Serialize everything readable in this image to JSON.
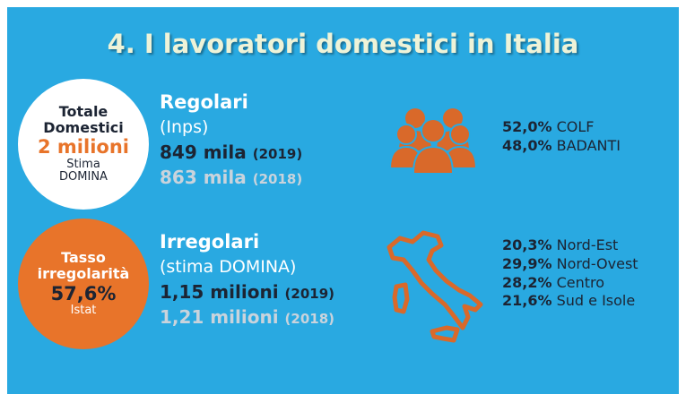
{
  "header": {
    "title": "4. I lavoratori domestici in Italia"
  },
  "total_circle": {
    "line1": "Totale",
    "line2": "Domestici",
    "value": "2 milioni",
    "source1": "Stima",
    "source2": "DOMINA"
  },
  "rate_circle": {
    "line1": "Tasso",
    "line2": "irregolarità",
    "value": "57,6%",
    "source": "Istat"
  },
  "regular": {
    "title": "Regolari",
    "source": "(Inps)",
    "current": {
      "value": "849 mila",
      "year": "(2019)"
    },
    "previous": {
      "value": "863 mila",
      "year": "(2018)"
    }
  },
  "irregular": {
    "title": "Irregolari",
    "source": "(stima DOMINA)",
    "current": {
      "value": "1,15 milioni",
      "year": "(2019)"
    },
    "previous": {
      "value": "1,21 milioni",
      "year": "(2018)"
    }
  },
  "worker_types": [
    {
      "share": "52,0%",
      "label": "COLF"
    },
    {
      "share": "48,0%",
      "label": "BADANTI"
    }
  ],
  "regions": [
    {
      "share": "20,3%",
      "label": "Nord-Est"
    },
    {
      "share": "29,9%",
      "label": "Nord-Ovest"
    },
    {
      "share": "28,2%",
      "label": "Centro"
    },
    {
      "share": "21,6%",
      "label": "Sud e Isole"
    }
  ]
}
